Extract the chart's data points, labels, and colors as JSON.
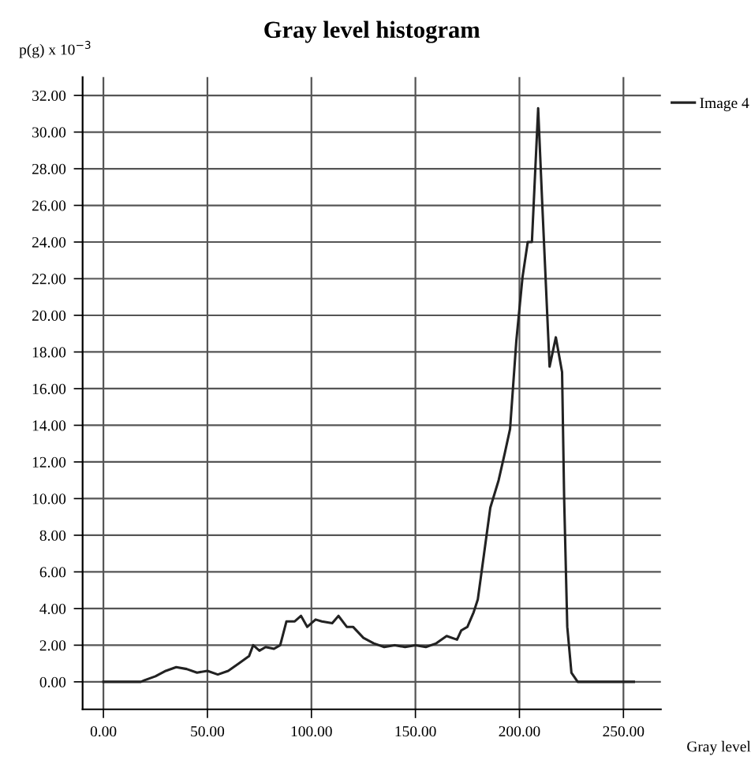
{
  "chart_data": {
    "type": "line",
    "title": "Gray level histogram",
    "xlabel": "Gray level",
    "ylabel": "p(g) x 10$^{−3}$",
    "x": [
      0,
      18,
      20,
      25,
      30,
      35,
      40,
      45,
      50,
      55,
      60,
      65,
      70,
      72,
      75,
      78,
      82,
      85,
      88,
      92,
      95,
      98,
      102,
      105,
      110,
      113,
      117,
      120,
      125,
      130,
      135,
      140,
      145,
      150,
      155,
      160,
      165,
      170,
      172,
      175,
      178,
      180,
      183,
      186,
      190,
      193,
      195.5,
      198.5,
      201.5,
      204,
      206,
      209,
      211,
      214.5,
      217.5,
      220.5,
      221.5,
      223,
      225,
      228,
      255
    ],
    "series": [
      {
        "name": "Image 4",
        "color": "#222222",
        "values": [
          0,
          0,
          0.1,
          0.3,
          0.6,
          0.8,
          0.7,
          0.5,
          0.6,
          0.4,
          0.6,
          1.0,
          1.4,
          2.0,
          1.7,
          1.9,
          1.8,
          2.0,
          3.3,
          3.3,
          3.6,
          3.0,
          3.4,
          3.3,
          3.2,
          3.6,
          3.0,
          3.0,
          2.4,
          2.1,
          1.9,
          2.0,
          1.9,
          2.0,
          1.9,
          2.1,
          2.5,
          2.3,
          2.8,
          3.0,
          3.8,
          4.5,
          7.0,
          9.5,
          11.0,
          12.5,
          13.8,
          18.6,
          22.1,
          24.0,
          24.0,
          31.3,
          26.0,
          17.2,
          18.8,
          16.9,
          10.0,
          3.0,
          0.5,
          0,
          0
        ]
      }
    ],
    "xlim": [
      -10,
      268
    ],
    "ylim": [
      -1.5,
      33
    ],
    "xticks": [
      {
        "value": 0,
        "label": "0.00"
      },
      {
        "value": 50,
        "label": "50.00"
      },
      {
        "value": 100,
        "label": "100.00"
      },
      {
        "value": 150,
        "label": "150.00"
      },
      {
        "value": 200,
        "label": "200.00"
      },
      {
        "value": 250,
        "label": "250.00"
      }
    ],
    "yticks": [
      {
        "value": 0,
        "label": "0.00"
      },
      {
        "value": 2,
        "label": "2.00"
      },
      {
        "value": 4,
        "label": "4.00"
      },
      {
        "value": 6,
        "label": "6.00"
      },
      {
        "value": 8,
        "label": "8.00"
      },
      {
        "value": 10,
        "label": "10.00"
      },
      {
        "value": 12,
        "label": "12.00"
      },
      {
        "value": 14,
        "label": "14.00"
      },
      {
        "value": 16,
        "label": "16.00"
      },
      {
        "value": 18,
        "label": "18.00"
      },
      {
        "value": 20,
        "label": "20.00"
      },
      {
        "value": 22,
        "label": "22.00"
      },
      {
        "value": 24,
        "label": "24.00"
      },
      {
        "value": 26,
        "label": "26.00"
      },
      {
        "value": 28,
        "label": "28.00"
      },
      {
        "value": 30,
        "label": "30.00"
      },
      {
        "value": 32,
        "label": "32.00"
      }
    ],
    "grid": true,
    "legend": "top right",
    "line_style": "solid"
  }
}
